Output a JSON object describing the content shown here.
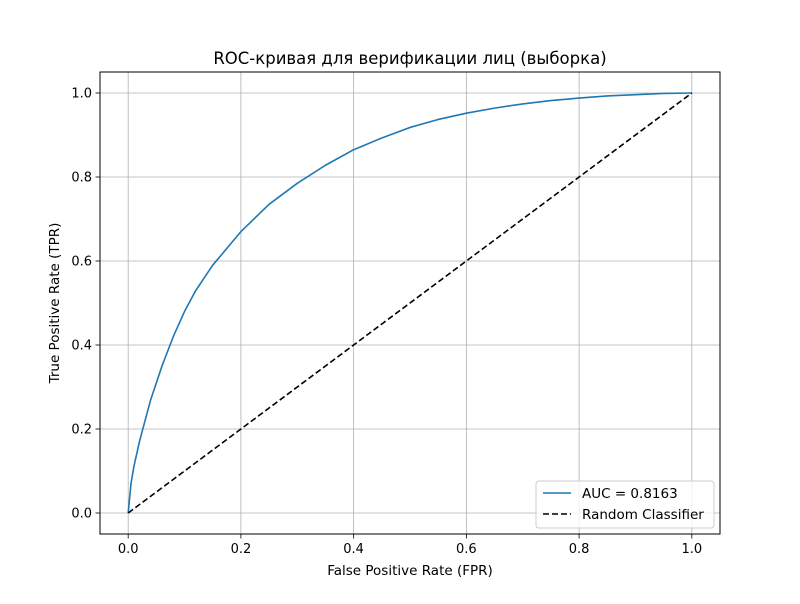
{
  "chart_data": {
    "type": "line",
    "title": "ROC-кривая для верификации лиц (выборка)",
    "xlabel": "False Positive Rate (FPR)",
    "ylabel": "True Positive Rate (TPR)",
    "xlim": [
      -0.05,
      1.05
    ],
    "ylim": [
      -0.05,
      1.05
    ],
    "xticks": [
      0.0,
      0.2,
      0.4,
      0.6,
      0.8,
      1.0
    ],
    "yticks": [
      0.0,
      0.2,
      0.4,
      0.6,
      0.8,
      1.0
    ],
    "xtick_labels": [
      "0.0",
      "0.2",
      "0.4",
      "0.6",
      "0.8",
      "1.0"
    ],
    "ytick_labels": [
      "0.0",
      "0.2",
      "0.4",
      "0.6",
      "0.8",
      "1.0"
    ],
    "grid": true,
    "legend_position": "lower-right",
    "series": [
      {
        "name": "AUC = 0.8163",
        "color": "#1f77b4",
        "style": "solid",
        "x": [
          0.0,
          0.005,
          0.01,
          0.02,
          0.03,
          0.04,
          0.06,
          0.08,
          0.1,
          0.12,
          0.15,
          0.2,
          0.25,
          0.3,
          0.35,
          0.4,
          0.45,
          0.5,
          0.55,
          0.6,
          0.65,
          0.7,
          0.75,
          0.8,
          0.85,
          0.9,
          0.95,
          1.0
        ],
        "y": [
          0.0,
          0.07,
          0.11,
          0.17,
          0.22,
          0.27,
          0.35,
          0.42,
          0.48,
          0.53,
          0.59,
          0.67,
          0.735,
          0.785,
          0.828,
          0.865,
          0.893,
          0.918,
          0.937,
          0.952,
          0.964,
          0.974,
          0.982,
          0.988,
          0.993,
          0.996,
          0.999,
          1.0
        ]
      },
      {
        "name": "Random Classifier",
        "color": "#000000",
        "style": "dashed",
        "x": [
          0.0,
          1.0
        ],
        "y": [
          0.0,
          1.0
        ]
      }
    ]
  }
}
